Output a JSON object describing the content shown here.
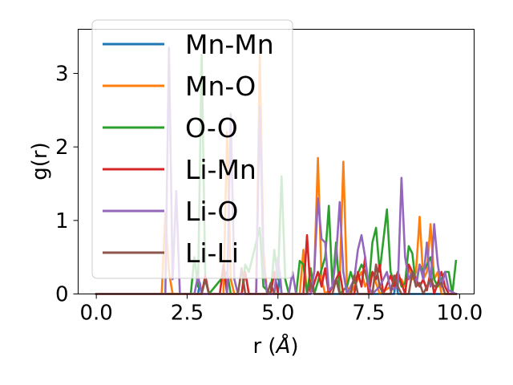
{
  "chart_data": {
    "type": "line",
    "xlabel_prefix": "r (",
    "xlabel_unit": "Å",
    "xlabel_suffix": ")",
    "ylabel": "g(r)",
    "xlim": [
      -0.5,
      10.4
    ],
    "ylim": [
      0,
      3.6
    ],
    "xticks": [
      0.0,
      2.5,
      5.0,
      7.5,
      10.0
    ],
    "xtick_labels": [
      "0.0",
      "2.5",
      "5.0",
      "7.5",
      "10.0"
    ],
    "yticks": [
      0,
      1,
      2,
      3
    ],
    "ytick_labels": [
      "0",
      "1",
      "2",
      "3"
    ],
    "grid": false,
    "legend_position": "upper-left",
    "series": [
      {
        "name": "Mn-Mn",
        "color": "#1f77b4",
        "points": [
          [
            0,
            0
          ],
          [
            2.8,
            0
          ],
          [
            2.85,
            0.15
          ],
          [
            2.9,
            0
          ],
          [
            5.0,
            0
          ],
          [
            5.05,
            0.3
          ],
          [
            5.1,
            0
          ],
          [
            5.9,
            0
          ],
          [
            5.95,
            0.2
          ],
          [
            6.0,
            0
          ],
          [
            8.2,
            0
          ],
          [
            8.25,
            0.25
          ],
          [
            8.3,
            0
          ],
          [
            9.9,
            0
          ]
        ]
      },
      {
        "name": "Mn-O",
        "color": "#ff7f0e",
        "points": [
          [
            0,
            0
          ],
          [
            1.8,
            0
          ],
          [
            1.9,
            1.1
          ],
          [
            2.0,
            0.3
          ],
          [
            2.1,
            0
          ],
          [
            3.5,
            0
          ],
          [
            3.6,
            2.2
          ],
          [
            3.7,
            0.2
          ],
          [
            3.8,
            0
          ],
          [
            4.4,
            0
          ],
          [
            4.5,
            3.25
          ],
          [
            4.6,
            0.6
          ],
          [
            4.7,
            0
          ],
          [
            5.6,
            0
          ],
          [
            5.7,
            0.6
          ],
          [
            5.8,
            0
          ],
          [
            6.0,
            0.3
          ],
          [
            6.1,
            1.85
          ],
          [
            6.2,
            0.2
          ],
          [
            6.3,
            0
          ],
          [
            6.7,
            0.2
          ],
          [
            6.8,
            1.8
          ],
          [
            6.9,
            0.1
          ],
          [
            7.0,
            0
          ],
          [
            7.3,
            0.3
          ],
          [
            7.4,
            0.1
          ],
          [
            7.6,
            0.3
          ],
          [
            7.8,
            0
          ],
          [
            8.4,
            0.2
          ],
          [
            8.5,
            0.1
          ],
          [
            8.6,
            0.35
          ],
          [
            8.7,
            0.2
          ],
          [
            8.8,
            0.3
          ],
          [
            8.9,
            1.05
          ],
          [
            9.0,
            0.2
          ],
          [
            9.1,
            0.3
          ],
          [
            9.2,
            0.95
          ],
          [
            9.3,
            0.2
          ],
          [
            9.4,
            0.3
          ],
          [
            9.5,
            0
          ],
          [
            9.9,
            0
          ]
        ]
      },
      {
        "name": "O-O",
        "color": "#2ca02c",
        "points": [
          [
            0,
            0
          ],
          [
            2.6,
            0
          ],
          [
            2.7,
            0.5
          ],
          [
            2.8,
            0.1
          ],
          [
            2.9,
            3.25
          ],
          [
            3.0,
            0.2
          ],
          [
            3.1,
            0
          ],
          [
            3.6,
            0.3
          ],
          [
            3.7,
            0
          ],
          [
            4.0,
            0
          ],
          [
            4.1,
            0.4
          ],
          [
            4.2,
            0.3
          ],
          [
            4.5,
            0.9
          ],
          [
            4.6,
            0.1
          ],
          [
            4.8,
            0
          ],
          [
            4.9,
            0.6
          ],
          [
            5.0,
            0.2
          ],
          [
            5.1,
            1.6
          ],
          [
            5.2,
            0.2
          ],
          [
            5.3,
            0
          ],
          [
            5.5,
            0
          ],
          [
            5.6,
            0.45
          ],
          [
            5.7,
            0.4
          ],
          [
            5.8,
            0
          ],
          [
            5.9,
            0.35
          ],
          [
            6.0,
            0
          ],
          [
            6.3,
            0.5
          ],
          [
            6.4,
            1.2
          ],
          [
            6.5,
            0.1
          ],
          [
            6.6,
            0.7
          ],
          [
            6.7,
            0
          ],
          [
            6.9,
            0.1
          ],
          [
            7.0,
            0.3
          ],
          [
            7.1,
            0.15
          ],
          [
            7.3,
            0.4
          ],
          [
            7.4,
            0.3
          ],
          [
            7.5,
            0.1
          ],
          [
            7.6,
            0.7
          ],
          [
            7.7,
            0.9
          ],
          [
            7.8,
            0.3
          ],
          [
            8.0,
            1.15
          ],
          [
            8.1,
            0.3
          ],
          [
            8.2,
            0.15
          ],
          [
            8.3,
            0.3
          ],
          [
            8.4,
            0.1
          ],
          [
            8.5,
            0.15
          ],
          [
            8.6,
            0.65
          ],
          [
            8.7,
            0.55
          ],
          [
            8.8,
            0.1
          ],
          [
            8.9,
            0.4
          ],
          [
            9.0,
            0.3
          ],
          [
            9.2,
            0.5
          ],
          [
            9.3,
            0.2
          ],
          [
            9.4,
            0.1
          ],
          [
            9.6,
            0.3
          ],
          [
            9.7,
            0.3
          ],
          [
            9.8,
            0
          ],
          [
            9.9,
            0.45
          ]
        ]
      },
      {
        "name": "Li-Mn",
        "color": "#d62728",
        "points": [
          [
            0,
            0
          ],
          [
            2.9,
            0
          ],
          [
            3.0,
            0.25
          ],
          [
            3.1,
            0
          ],
          [
            3.4,
            0
          ],
          [
            3.5,
            0.4
          ],
          [
            3.6,
            0
          ],
          [
            4.0,
            0
          ],
          [
            4.1,
            0.3
          ],
          [
            4.2,
            0
          ],
          [
            4.8,
            0
          ],
          [
            4.9,
            0.3
          ],
          [
            5.0,
            0
          ],
          [
            5.7,
            0
          ],
          [
            5.8,
            0.8
          ],
          [
            5.9,
            0
          ],
          [
            6.1,
            0.3
          ],
          [
            6.2,
            0.1
          ],
          [
            6.3,
            0.35
          ],
          [
            6.4,
            0
          ],
          [
            6.6,
            0.2
          ],
          [
            6.7,
            0.3
          ],
          [
            6.8,
            0
          ],
          [
            7.1,
            0
          ],
          [
            7.2,
            0.3
          ],
          [
            7.3,
            0.1
          ],
          [
            7.4,
            0.5
          ],
          [
            7.5,
            0
          ],
          [
            7.6,
            0.3
          ],
          [
            7.7,
            0.2
          ],
          [
            7.8,
            0.4
          ],
          [
            7.9,
            0
          ],
          [
            8.1,
            0.25
          ],
          [
            8.2,
            0.1
          ],
          [
            8.3,
            0.3
          ],
          [
            8.5,
            0
          ],
          [
            8.6,
            0.4
          ],
          [
            8.7,
            0.3
          ],
          [
            8.9,
            0.1
          ],
          [
            9.0,
            0.2
          ],
          [
            9.1,
            0.05
          ],
          [
            9.2,
            0.3
          ],
          [
            9.3,
            0
          ],
          [
            9.5,
            0.3
          ],
          [
            9.6,
            0.1
          ],
          [
            9.7,
            0
          ],
          [
            9.9,
            0
          ]
        ]
      },
      {
        "name": "Li-O",
        "color": "#9467bd",
        "points": [
          [
            0,
            0
          ],
          [
            1.9,
            0
          ],
          [
            2.0,
            3.35
          ],
          [
            2.1,
            0.2
          ],
          [
            2.2,
            1.4
          ],
          [
            2.3,
            0
          ],
          [
            2.7,
            0
          ],
          [
            2.8,
            0.25
          ],
          [
            2.9,
            0
          ],
          [
            3.6,
            0
          ],
          [
            3.7,
            2.45
          ],
          [
            3.8,
            0.2
          ],
          [
            3.9,
            0
          ],
          [
            4.4,
            0
          ],
          [
            4.5,
            2.55
          ],
          [
            4.6,
            0.4
          ],
          [
            4.7,
            0
          ],
          [
            4.9,
            0
          ],
          [
            5.0,
            0.5
          ],
          [
            5.1,
            0
          ],
          [
            5.3,
            0
          ],
          [
            5.4,
            0.3
          ],
          [
            5.5,
            0
          ],
          [
            5.9,
            0
          ],
          [
            6.0,
            0.3
          ],
          [
            6.1,
            1.3
          ],
          [
            6.2,
            0.75
          ],
          [
            6.3,
            0.7
          ],
          [
            6.4,
            0.05
          ],
          [
            6.5,
            0.1
          ],
          [
            6.6,
            0.5
          ],
          [
            6.7,
            1.25
          ],
          [
            6.8,
            0.3
          ],
          [
            6.9,
            0
          ],
          [
            7.1,
            0.2
          ],
          [
            7.2,
            0.6
          ],
          [
            7.3,
            0.8
          ],
          [
            7.4,
            0.5
          ],
          [
            7.5,
            0.1
          ],
          [
            7.6,
            0
          ],
          [
            7.8,
            0.1
          ],
          [
            7.9,
            0.2
          ],
          [
            8.0,
            0.3
          ],
          [
            8.1,
            0.05
          ],
          [
            8.3,
            0.1
          ],
          [
            8.4,
            1.58
          ],
          [
            8.5,
            0.5
          ],
          [
            8.6,
            0.2
          ],
          [
            8.7,
            0.3
          ],
          [
            8.8,
            0.15
          ],
          [
            8.9,
            0.4
          ],
          [
            9.0,
            0.2
          ],
          [
            9.1,
            0.7
          ],
          [
            9.2,
            0.1
          ],
          [
            9.3,
            0.95
          ],
          [
            9.4,
            0.4
          ],
          [
            9.5,
            0.1
          ],
          [
            9.6,
            0.3
          ],
          [
            9.7,
            0.05
          ],
          [
            9.9,
            0
          ]
        ]
      },
      {
        "name": "Li-Li",
        "color": "#8c564b",
        "points": [
          [
            0,
            0
          ],
          [
            2.9,
            0
          ],
          [
            3.0,
            0.2
          ],
          [
            3.1,
            0
          ],
          [
            3.9,
            0
          ],
          [
            4.0,
            0.35
          ],
          [
            4.1,
            0
          ],
          [
            4.7,
            0
          ],
          [
            4.8,
            0.15
          ],
          [
            4.9,
            0
          ],
          [
            5.8,
            0
          ],
          [
            5.9,
            0.15
          ],
          [
            6.0,
            0
          ],
          [
            6.5,
            0
          ],
          [
            6.6,
            0.2
          ],
          [
            6.7,
            0
          ],
          [
            7.0,
            0
          ],
          [
            7.1,
            0.25
          ],
          [
            7.2,
            0
          ],
          [
            7.6,
            0
          ],
          [
            7.7,
            0.4
          ],
          [
            7.8,
            0.1
          ],
          [
            7.9,
            0
          ],
          [
            8.1,
            0
          ],
          [
            8.2,
            0.25
          ],
          [
            8.3,
            0.1
          ],
          [
            8.4,
            0
          ],
          [
            8.6,
            0
          ],
          [
            8.7,
            0.3
          ],
          [
            8.8,
            0.1
          ],
          [
            8.9,
            0.15
          ],
          [
            9.0,
            0
          ],
          [
            9.2,
            0.2
          ],
          [
            9.3,
            0.1
          ],
          [
            9.5,
            0.15
          ],
          [
            9.6,
            0
          ],
          [
            9.9,
            0
          ]
        ]
      }
    ]
  }
}
